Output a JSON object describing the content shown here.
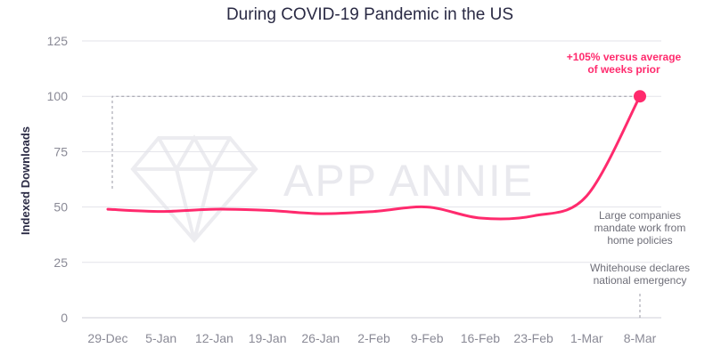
{
  "title": "During COVID-19 Pandemic in the US",
  "watermark": "APP ANNIE",
  "colors": {
    "line": "#ff2a6d",
    "grid": "#e3e3ea",
    "axis": "#8a8a96",
    "guide": "#9a9aa4"
  },
  "chart_data": {
    "type": "line",
    "title": "During COVID-19 Pandemic in the US",
    "xlabel": "",
    "ylabel": "Indexed Downloads",
    "categories": [
      "29-Dec",
      "5-Jan",
      "12-Jan",
      "19-Jan",
      "26-Jan",
      "2-Feb",
      "9-Feb",
      "16-Feb",
      "23-Feb",
      "1-Mar",
      "8-Mar"
    ],
    "yticks": [
      0,
      25,
      50,
      75,
      100,
      125
    ],
    "ylim": [
      0,
      125
    ],
    "grid": true,
    "series": [
      {
        "values": [
          49,
          48,
          49,
          48.5,
          47,
          48,
          50,
          45,
          46,
          55,
          100
        ]
      }
    ],
    "highlight": {
      "category": "8-Mar",
      "value": 100
    },
    "annotations": [
      {
        "lines": [
          "+105% versus average",
          "of weeks prior"
        ],
        "emphasis": true
      },
      {
        "lines": [
          "Large companies",
          "mandate work from",
          "home policies"
        ]
      },
      {
        "lines": [
          "Whitehouse declares",
          "national emergency"
        ]
      }
    ]
  }
}
